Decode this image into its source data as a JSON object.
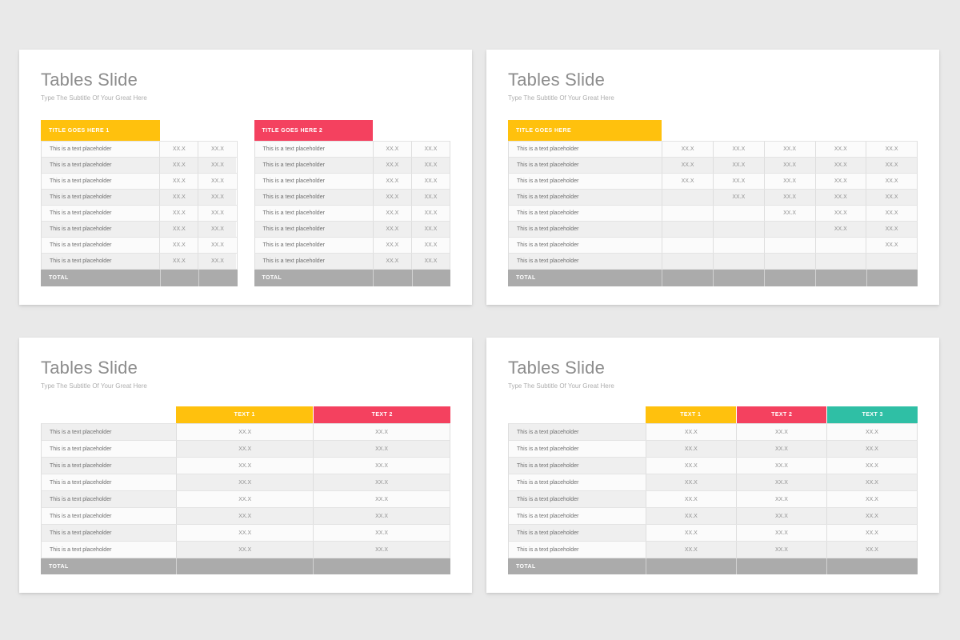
{
  "page": {
    "background": "#e9e9e9"
  },
  "accent_colors": {
    "yellow": "#ffc10d",
    "pink": "#f4415f",
    "teal": "#2fbfa5",
    "total_gray": "#ababab"
  },
  "slides": [
    {
      "title": "Tables Slide",
      "subtitle": "Type The Subtitle Of Your Great Here",
      "tables": [
        {
          "type": "side-header",
          "header": {
            "label": "TITLE GOES HERE 1",
            "color": "#ffc10d"
          },
          "label_col_pct": 60.5,
          "rows": [
            {
              "label": "This is a text placeholder",
              "values": [
                "XX.X",
                "XX.X"
              ]
            },
            {
              "label": "This is a text placeholder",
              "values": [
                "XX.X",
                "XX.X"
              ]
            },
            {
              "label": "This is a text placeholder",
              "values": [
                "XX.X",
                "XX.X"
              ]
            },
            {
              "label": "This is a text placeholder",
              "values": [
                "XX.X",
                "XX.X"
              ]
            },
            {
              "label": "This is a text placeholder",
              "values": [
                "XX.X",
                "XX.X"
              ]
            },
            {
              "label": "This is a text placeholder",
              "values": [
                "XX.X",
                "XX.X"
              ]
            },
            {
              "label": "This is a text placeholder",
              "values": [
                "XX.X",
                "XX.X"
              ]
            },
            {
              "label": "This is a text placeholder",
              "values": [
                "XX.X",
                "XX.X"
              ]
            }
          ],
          "total": {
            "label": "TOTAL"
          }
        },
        {
          "type": "side-header",
          "header": {
            "label": "TITLE GOES HERE 2",
            "color": "#f4415f"
          },
          "label_col_pct": 60.5,
          "rows": [
            {
              "label": "This is a text placeholder",
              "values": [
                "XX.X",
                "XX.X"
              ]
            },
            {
              "label": "This is a text placeholder",
              "values": [
                "XX.X",
                "XX.X"
              ]
            },
            {
              "label": "This is a text placeholder",
              "values": [
                "XX.X",
                "XX.X"
              ]
            },
            {
              "label": "This is a text placeholder",
              "values": [
                "XX.X",
                "XX.X"
              ]
            },
            {
              "label": "This is a text placeholder",
              "values": [
                "XX.X",
                "XX.X"
              ]
            },
            {
              "label": "This is a text placeholder",
              "values": [
                "XX.X",
                "XX.X"
              ]
            },
            {
              "label": "This is a text placeholder",
              "values": [
                "XX.X",
                "XX.X"
              ]
            },
            {
              "label": "This is a text placeholder",
              "values": [
                "XX.X",
                "XX.X"
              ]
            }
          ],
          "total": {
            "label": "TOTAL"
          }
        }
      ]
    },
    {
      "title": "Tables Slide",
      "subtitle": "Type The Subtitle Of Your Great Here",
      "tables": [
        {
          "type": "side-header",
          "header": {
            "label": "TITLE GOES HERE",
            "color": "#ffc10d"
          },
          "label_col_pct": 37.5,
          "rows": [
            {
              "label": "This is a text placeholder",
              "values": [
                "XX.X",
                "XX.X",
                "XX.X",
                "XX.X",
                "XX.X"
              ]
            },
            {
              "label": "This is a text placeholder",
              "values": [
                "XX.X",
                "XX.X",
                "XX.X",
                "XX.X",
                "XX.X"
              ]
            },
            {
              "label": "This is a text placeholder",
              "values": [
                "XX.X",
                "XX.X",
                "XX.X",
                "XX.X",
                "XX.X"
              ]
            },
            {
              "label": "This is a text placeholder",
              "values": [
                "",
                "XX.X",
                "XX.X",
                "XX.X",
                "XX.X"
              ]
            },
            {
              "label": "This is a text placeholder",
              "values": [
                "",
                "",
                "XX.X",
                "XX.X",
                "XX.X"
              ]
            },
            {
              "label": "This is a text placeholder",
              "values": [
                "",
                "",
                "",
                "XX.X",
                "XX.X"
              ]
            },
            {
              "label": "This is a text placeholder",
              "values": [
                "",
                "",
                "",
                "",
                "XX.X"
              ]
            },
            {
              "label": "This is a text placeholder",
              "values": [
                "",
                "",
                "",
                "",
                ""
              ]
            }
          ],
          "total": {
            "label": "TOTAL"
          }
        }
      ]
    },
    {
      "title": "Tables Slide",
      "subtitle": "Type The Subtitle Of Your Great Here",
      "tables": [
        {
          "type": "top-header",
          "col_headers": [
            {
              "label": "TEXT 1",
              "color": "#ffc10d"
            },
            {
              "label": "TEXT 2",
              "color": "#f4415f"
            }
          ],
          "label_col_pct": 33,
          "rows": [
            {
              "label": "This is a text placeholder",
              "values": [
                "XX.X",
                "XX.X"
              ]
            },
            {
              "label": "This is a text placeholder",
              "values": [
                "XX.X",
                "XX.X"
              ]
            },
            {
              "label": "This is a text placeholder",
              "values": [
                "XX.X",
                "XX.X"
              ]
            },
            {
              "label": "This is a text placeholder",
              "values": [
                "XX.X",
                "XX.X"
              ]
            },
            {
              "label": "This is a text placeholder",
              "values": [
                "XX.X",
                "XX.X"
              ]
            },
            {
              "label": "This is a text placeholder",
              "values": [
                "XX.X",
                "XX.X"
              ]
            },
            {
              "label": "This is a text placeholder",
              "values": [
                "XX.X",
                "XX.X"
              ]
            },
            {
              "label": "This is a text placeholder",
              "values": [
                "XX.X",
                "XX.X"
              ]
            }
          ],
          "total": {
            "label": "TOTAL"
          }
        }
      ]
    },
    {
      "title": "Tables Slide",
      "subtitle": "Type The Subtitle Of Your Great Here",
      "tables": [
        {
          "type": "top-header",
          "col_headers": [
            {
              "label": "TEXT 1",
              "color": "#ffc10d"
            },
            {
              "label": "TEXT 2",
              "color": "#f4415f"
            },
            {
              "label": "TEXT 3",
              "color": "#2fbfa5"
            }
          ],
          "label_col_pct": 33.5,
          "rows": [
            {
              "label": "This is a text placeholder",
              "values": [
                "XX.X",
                "XX.X",
                "XX.X"
              ]
            },
            {
              "label": "This is a text placeholder",
              "values": [
                "XX.X",
                "XX.X",
                "XX.X"
              ]
            },
            {
              "label": "This is a text placeholder",
              "values": [
                "XX.X",
                "XX.X",
                "XX.X"
              ]
            },
            {
              "label": "This is a text placeholder",
              "values": [
                "XX.X",
                "XX.X",
                "XX.X"
              ]
            },
            {
              "label": "This is a text placeholder",
              "values": [
                "XX.X",
                "XX.X",
                "XX.X"
              ]
            },
            {
              "label": "This is a text placeholder",
              "values": [
                "XX.X",
                "XX.X",
                "XX.X"
              ]
            },
            {
              "label": "This is a text placeholder",
              "values": [
                "XX.X",
                "XX.X",
                "XX.X"
              ]
            },
            {
              "label": "This is a text placeholder",
              "values": [
                "XX.X",
                "XX.X",
                "XX.X"
              ]
            }
          ],
          "total": {
            "label": "TOTAL"
          }
        }
      ]
    }
  ]
}
